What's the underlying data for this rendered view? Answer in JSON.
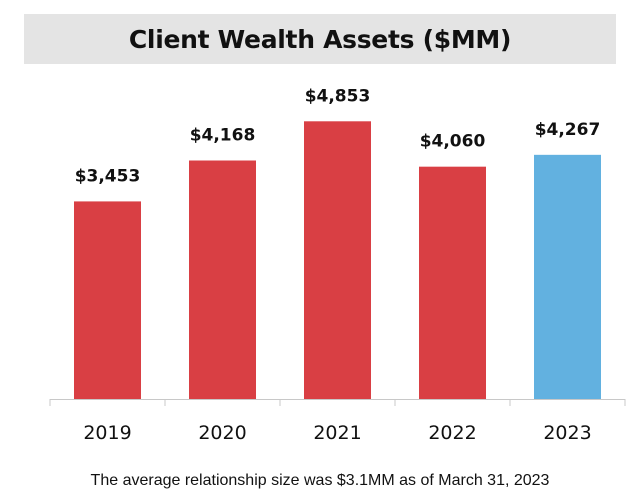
{
  "chart_data": {
    "type": "bar",
    "title": "Client Wealth Assets ($MM)",
    "categories": [
      "2019",
      "2020",
      "2021",
      "2022",
      "2023"
    ],
    "values": [
      3453,
      4168,
      4853,
      4060,
      4267
    ],
    "value_labels": [
      "$3,453",
      "$4,168",
      "$4,853",
      "$4,060",
      "$4,267"
    ],
    "bar_colors": [
      "#d93f44",
      "#d93f44",
      "#d93f44",
      "#d93f44",
      "#62b1e0"
    ],
    "xlabel": "",
    "ylabel": "",
    "ylim": [
      0,
      5400
    ],
    "grid": false,
    "legend": "none"
  },
  "footnote": "The average relationship size was $3.1MM as of March 31, 2023"
}
